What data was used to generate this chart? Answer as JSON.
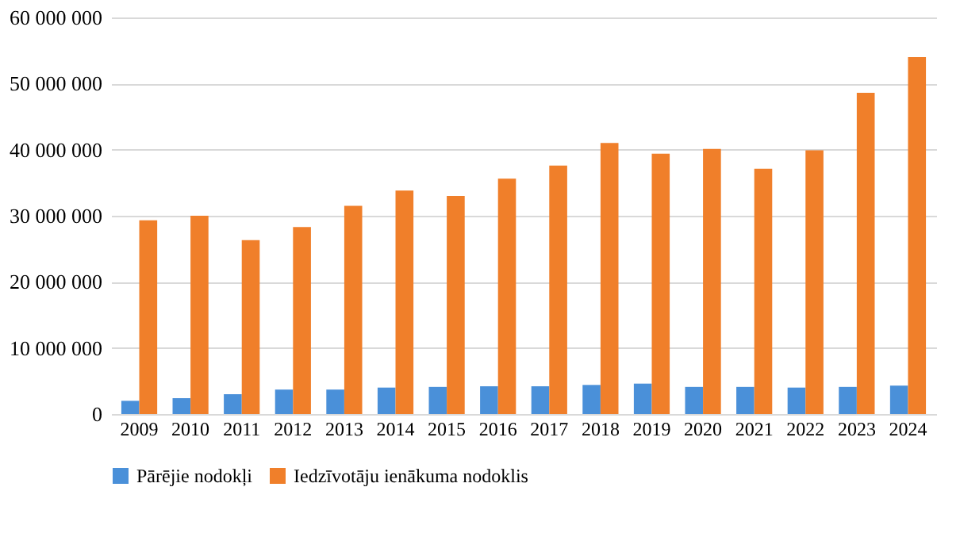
{
  "chart_data": {
    "type": "bar",
    "categories": [
      "2009",
      "2010",
      "2011",
      "2012",
      "2013",
      "2014",
      "2015",
      "2016",
      "2017",
      "2018",
      "2019",
      "2020",
      "2021",
      "2022",
      "2023",
      "2024"
    ],
    "series": [
      {
        "name": "Pārējie nodokļi",
        "color": "#4a90d9",
        "values": [
          2000000,
          2400000,
          3000000,
          3700000,
          3700000,
          4000000,
          4100000,
          4200000,
          4200000,
          4400000,
          4600000,
          4100000,
          4100000,
          4000000,
          4100000,
          4300000
        ]
      },
      {
        "name": "Iedzīvotāju ienākuma nodoklis",
        "color": "#f07f2a",
        "values": [
          29300000,
          30000000,
          26300000,
          28300000,
          31500000,
          33800000,
          33000000,
          35600000,
          37600000,
          41000000,
          39400000,
          40100000,
          37100000,
          39900000,
          48600000,
          54000000
        ]
      }
    ],
    "ylim": [
      0,
      60000000
    ],
    "yticks": [
      0,
      {
        "value": 10000000,
        "label": "10 000 000"
      },
      {
        "value": 20000000,
        "label": "20 000 000"
      },
      {
        "value": 30000000,
        "label": "30 000 000"
      },
      {
        "value": 40000000,
        "label": "40 000 000"
      },
      {
        "value": 50000000,
        "label": "50 000 000"
      },
      {
        "value": 60000000,
        "label": "60 000 000"
      }
    ],
    "grid": "y",
    "legend": "bottom"
  }
}
